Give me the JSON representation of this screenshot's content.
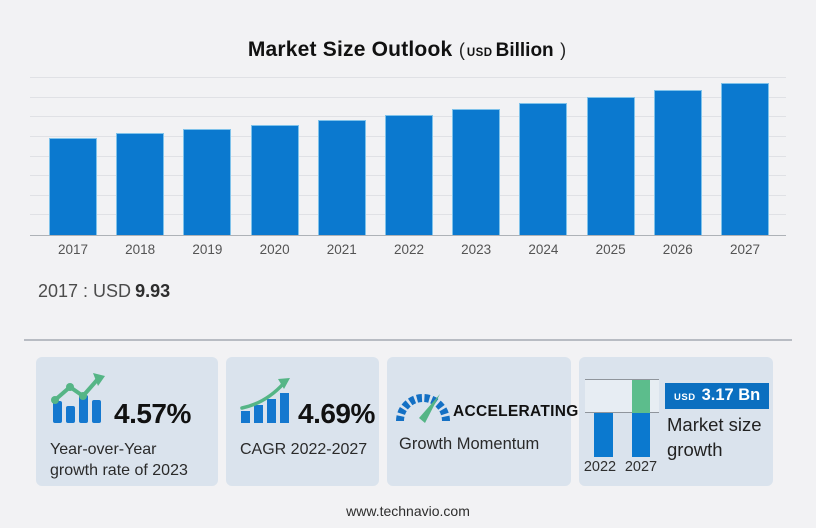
{
  "title": {
    "main": "Market Size Outlook",
    "open": "(",
    "unit": "USD",
    "bold_unit": "Billion",
    "close": ")"
  },
  "chart_data": [
    {
      "type": "bar",
      "title": "Market Size Outlook (USD Billion)",
      "categories": [
        "2017",
        "2018",
        "2019",
        "2020",
        "2021",
        "2022",
        "2023",
        "2024",
        "2025",
        "2026",
        "2027"
      ],
      "values": [
        9.93,
        10.37,
        10.81,
        11.26,
        11.77,
        12.3,
        12.86,
        13.46,
        14.09,
        14.76,
        15.47
      ],
      "xlabel": "",
      "ylabel": "USD Billion",
      "ylim": [
        0,
        16
      ],
      "gridline_step": 2,
      "grid": true,
      "bar_color": "#0b79cf",
      "annotation": "2017 : USD 9.93"
    },
    {
      "type": "bar",
      "title": "Market size growth",
      "categories": [
        "2022",
        "2027"
      ],
      "series": [
        {
          "name": "base",
          "values": [
            12.3,
            12.3
          ]
        },
        {
          "name": "growth",
          "values": [
            0,
            3.17
          ]
        }
      ],
      "annotation": "USD 3.17 Bn"
    }
  ],
  "annotation": {
    "prefix": "2017 : USD",
    "value": "9.93"
  },
  "cards": [
    {
      "value": "4.57%",
      "label": "Year-over-Year growth rate of 2023",
      "icon": "bar-trend-icon"
    },
    {
      "value": "4.69%",
      "label": "CAGR 2022-2027",
      "icon": "growth-arrow-icon"
    },
    {
      "value": "ACCELERATING",
      "label": "Growth Momentum",
      "icon": "gauge-icon"
    },
    {
      "badge_currency": "USD",
      "badge_value": "3.17 Bn",
      "label": "Market size growth",
      "icon": "mini-growth-chart"
    }
  ],
  "footer": {
    "url": "www.technavio.com"
  },
  "colors": {
    "page_bg": "#f2f2f4",
    "card_bg": "#dae3ed",
    "bar_blue": "#0b79cf",
    "badge_blue": "#0b6fc0",
    "growth_green": "#5cbd8c"
  }
}
